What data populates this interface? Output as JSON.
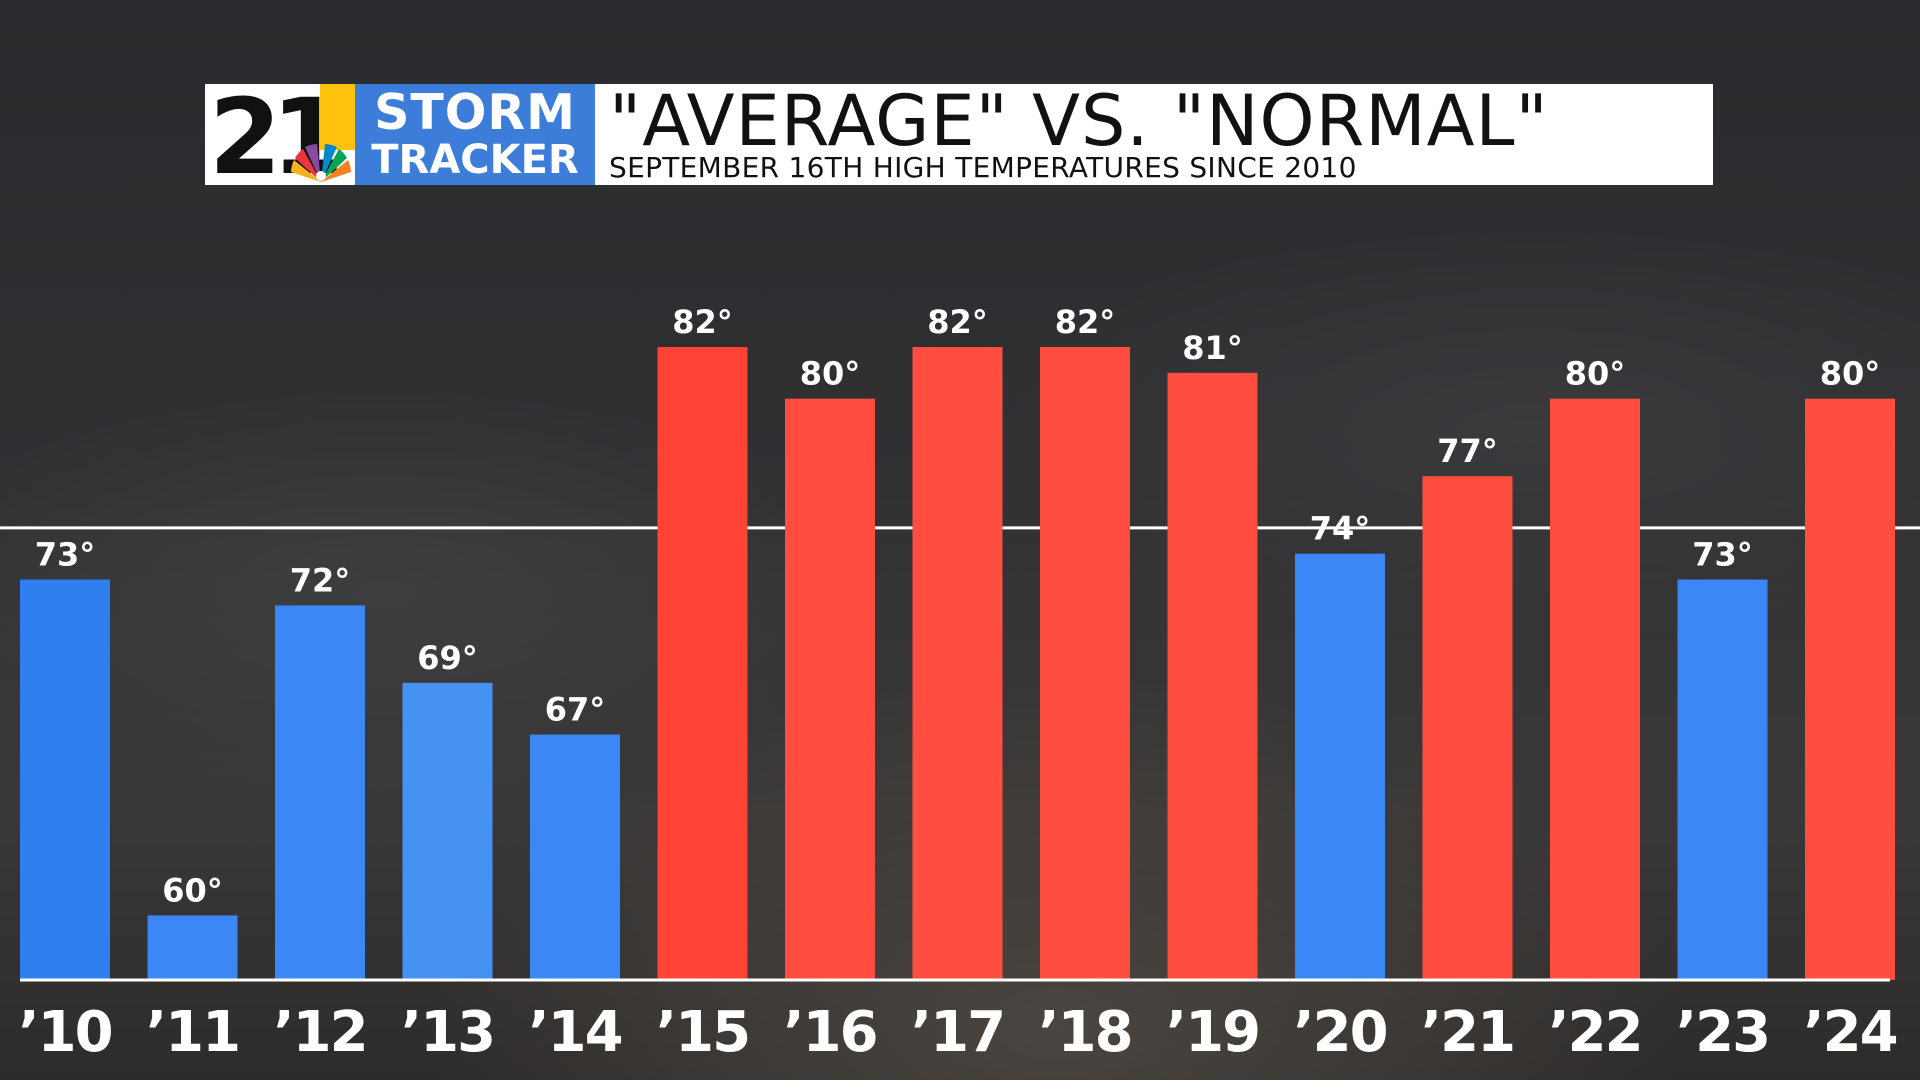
{
  "header": {
    "logo_number": "21",
    "logo_line1": "STORM",
    "logo_line2": "TRACKER",
    "title": "\"AVERAGE\" VS. \"NORMAL\"",
    "subtitle": "SEPTEMBER 16TH HIGH TEMPERATURES SINCE 2010"
  },
  "chart_data": {
    "type": "bar",
    "title": "\"AVERAGE\" VS. \"NORMAL\"",
    "subtitle": "SEPTEMBER 16TH HIGH TEMPERATURES SINCE 2010",
    "categories": [
      "’10",
      "’11",
      "’12",
      "’13",
      "’14",
      "’15",
      "’16",
      "’17",
      "’18",
      "’19",
      "’20",
      "’21",
      "’22",
      "’23",
      "’24"
    ],
    "values": [
      73,
      60,
      72,
      69,
      67,
      82,
      80,
      82,
      82,
      81,
      74,
      77,
      80,
      73,
      80
    ],
    "value_labels": [
      "73°",
      "60°",
      "72°",
      "69°",
      "67°",
      "82°",
      "80°",
      "82°",
      "82°",
      "81°",
      "74°",
      "77°",
      "80°",
      "73°",
      "80°"
    ],
    "bar_colors": [
      "#2f7ff0",
      "#3a87f5",
      "#3a87f5",
      "#4592f2",
      "#3a87f5",
      "#ff4436",
      "#ff4d40",
      "#ff4d40",
      "#ff4d40",
      "#ff4d40",
      "#3a87f5",
      "#ff4d40",
      "#ff4d40",
      "#3a87f5",
      "#ff4d40"
    ],
    "reference_line": {
      "value": 75,
      "color": "#ffffff"
    },
    "ylim": [
      57.5,
      87.5
    ],
    "grid": false,
    "colors": {
      "above": "#ff4d40",
      "below": "#3a87f5",
      "text": "#ffffff"
    }
  }
}
